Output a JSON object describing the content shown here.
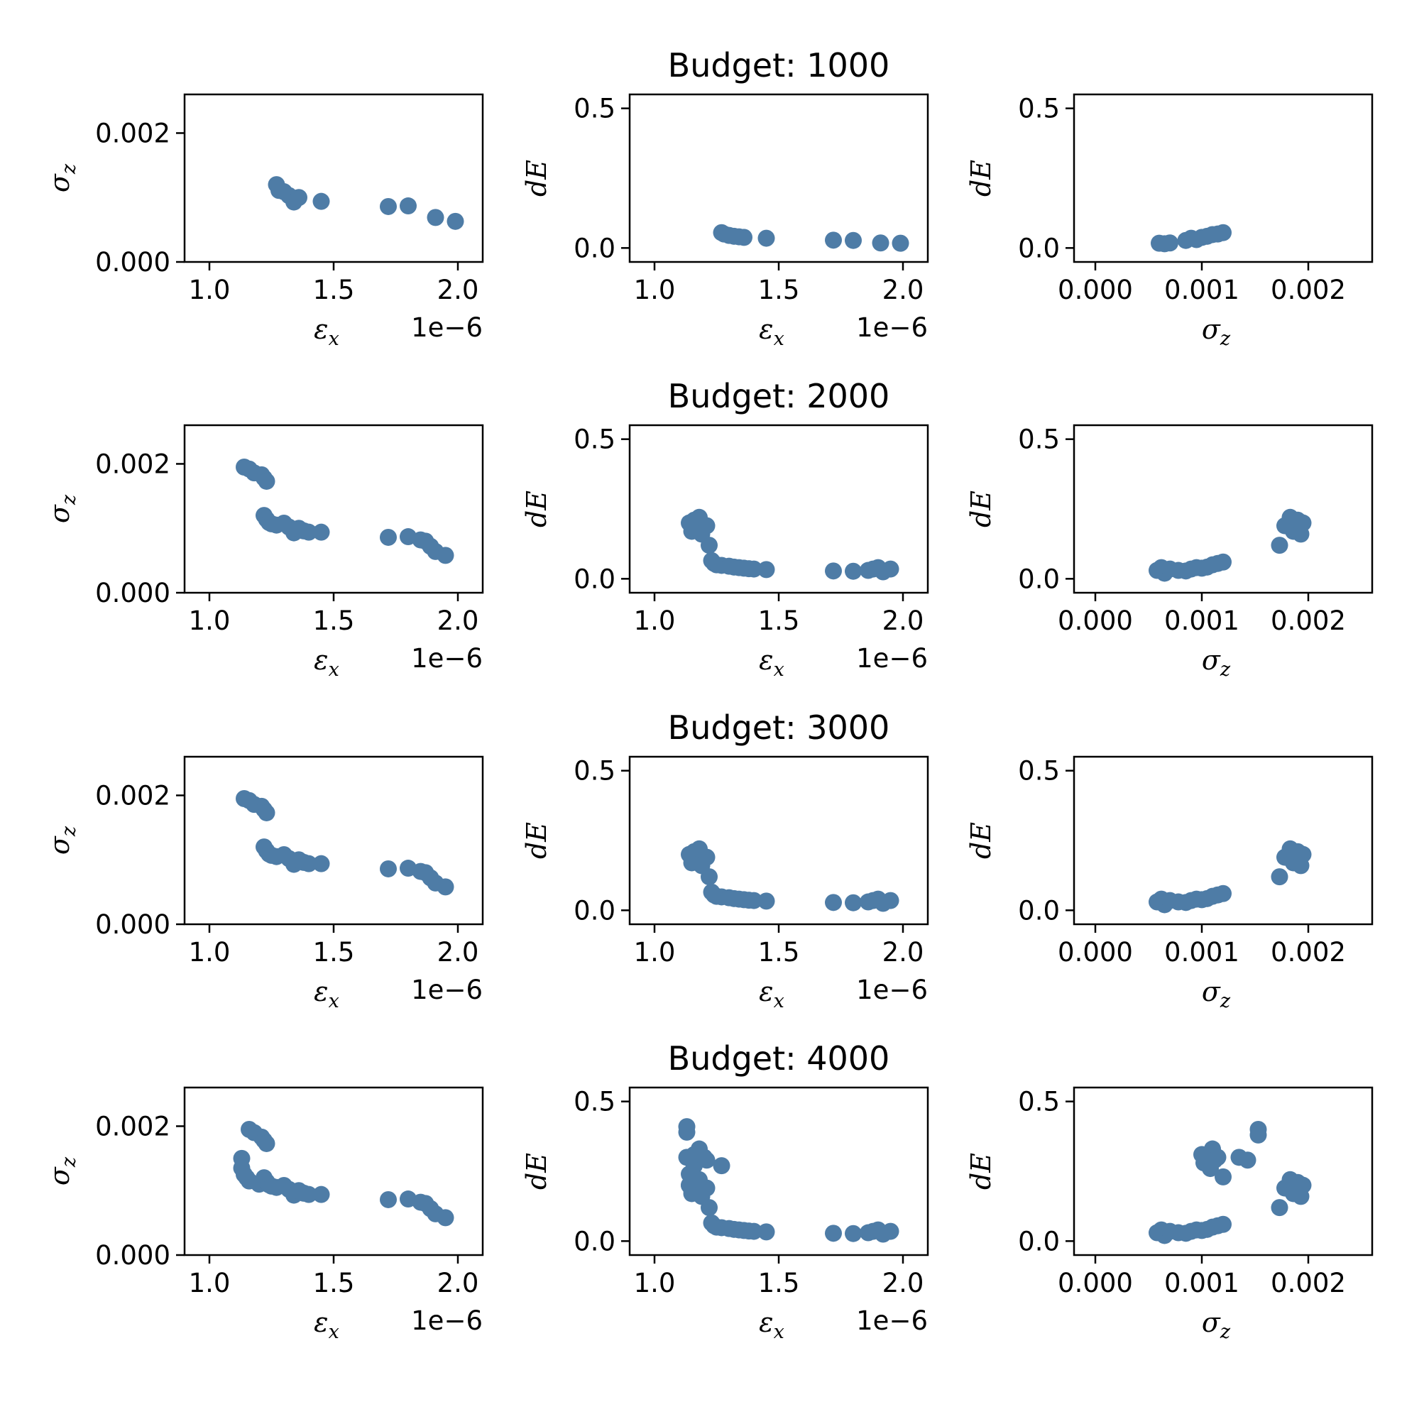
{
  "colors": {
    "marker": "#4e7ca6"
  },
  "row_titles": [
    "Budget: 1000",
    "Budget: 2000",
    "Budget: 3000",
    "Budget: 4000"
  ],
  "axis_labels": {
    "eps_x": "εx",
    "sigma_z": "σz",
    "dE": "dE",
    "offset_text": "1e−6"
  },
  "chart_data": [
    {
      "type": "scatter",
      "title": "Budget: 1000",
      "panels": [
        {
          "id": "r1c1",
          "xlabel": "εx",
          "ylabel": "σz",
          "x_offset": "1e−6",
          "xlim": [
            0.9,
            2.1
          ],
          "ylim": [
            0,
            0.0026
          ],
          "xticks": [
            "1.0",
            "1.5",
            "2.0"
          ],
          "xtick_values": [
            1.0,
            1.5,
            2.0
          ],
          "yticks": [
            "0.000",
            "0.002"
          ],
          "ytick_values": [
            0,
            0.002
          ],
          "x": [
            1.27,
            1.28,
            1.3,
            1.32,
            1.34,
            1.36,
            1.45,
            1.72,
            1.8,
            1.91,
            1.99
          ],
          "y": [
            0.0012,
            0.00111,
            0.00109,
            0.00103,
            0.00093,
            0.001,
            0.00094,
            0.00086,
            0.00087,
            0.00069,
            0.00063
          ]
        },
        {
          "id": "r1c2",
          "xlabel": "εx",
          "ylabel": "dE",
          "x_offset": "1e−6",
          "xlim": [
            0.9,
            2.1
          ],
          "ylim": [
            -0.05,
            0.55
          ],
          "xticks": [
            "1.0",
            "1.5",
            "2.0"
          ],
          "xtick_values": [
            1.0,
            1.5,
            2.0
          ],
          "yticks": [
            "0.0",
            "0.5"
          ],
          "ytick_values": [
            0,
            0.5
          ],
          "x": [
            1.27,
            1.28,
            1.3,
            1.32,
            1.34,
            1.36,
            1.45,
            1.72,
            1.8,
            1.91,
            1.99
          ],
          "y": [
            0.055,
            0.05,
            0.045,
            0.042,
            0.04,
            0.038,
            0.035,
            0.028,
            0.027,
            0.018,
            0.017
          ]
        },
        {
          "id": "r1c3",
          "xlabel": "σz",
          "ylabel": "dE",
          "xlim": [
            -0.0002,
            0.0026
          ],
          "ylim": [
            -0.05,
            0.55
          ],
          "xticks": [
            "0.000",
            "0.001",
            "0.002"
          ],
          "xtick_values": [
            0,
            0.001,
            0.002
          ],
          "yticks": [
            "0.0",
            "0.5"
          ],
          "ytick_values": [
            0,
            0.5
          ],
          "x": [
            0.0006,
            0.00065,
            0.0007,
            0.00085,
            0.0009,
            0.00095,
            0.001,
            0.00105,
            0.0011,
            0.00115,
            0.0012
          ],
          "y": [
            0.017,
            0.015,
            0.018,
            0.027,
            0.035,
            0.03,
            0.038,
            0.042,
            0.048,
            0.05,
            0.055
          ]
        }
      ]
    },
    {
      "type": "scatter",
      "title": "Budget: 2000",
      "panels": [
        {
          "id": "r2c1",
          "xlabel": "εx",
          "ylabel": "σz",
          "x_offset": "1e−6",
          "xlim": [
            0.9,
            2.1
          ],
          "ylim": [
            0,
            0.0026
          ],
          "xticks": [
            "1.0",
            "1.5",
            "2.0"
          ],
          "xtick_values": [
            1.0,
            1.5,
            2.0
          ],
          "yticks": [
            "0.000",
            "0.002"
          ],
          "ytick_values": [
            0,
            0.002
          ],
          "x": [
            1.14,
            1.16,
            1.18,
            1.21,
            1.22,
            1.23,
            1.22,
            1.23,
            1.24,
            1.25,
            1.27,
            1.3,
            1.32,
            1.34,
            1.36,
            1.38,
            1.4,
            1.45,
            1.72,
            1.8,
            1.85,
            1.87,
            1.89,
            1.91,
            1.95
          ],
          "y": [
            0.00195,
            0.00192,
            0.00186,
            0.00183,
            0.00178,
            0.00173,
            0.0012,
            0.00114,
            0.00109,
            0.00107,
            0.00105,
            0.00108,
            0.00102,
            0.00093,
            0.001,
            0.00096,
            0.00094,
            0.00094,
            0.00086,
            0.00087,
            0.00082,
            0.0008,
            0.00072,
            0.00064,
            0.00058
          ]
        },
        {
          "id": "r2c2",
          "xlabel": "εx",
          "ylabel": "dE",
          "x_offset": "1e−6",
          "xlim": [
            0.9,
            2.1
          ],
          "ylim": [
            -0.05,
            0.55
          ],
          "xticks": [
            "1.0",
            "1.5",
            "2.0"
          ],
          "xtick_values": [
            1.0,
            1.5,
            2.0
          ],
          "yticks": [
            "0.0",
            "0.5"
          ],
          "ytick_values": [
            0,
            0.5
          ],
          "x": [
            1.14,
            1.15,
            1.16,
            1.17,
            1.18,
            1.19,
            1.21,
            1.22,
            1.23,
            1.24,
            1.25,
            1.27,
            1.3,
            1.32,
            1.34,
            1.36,
            1.38,
            1.4,
            1.45,
            1.72,
            1.8,
            1.86,
            1.88,
            1.9,
            1.92,
            1.95
          ],
          "y": [
            0.2,
            0.17,
            0.21,
            0.19,
            0.22,
            0.16,
            0.19,
            0.12,
            0.065,
            0.055,
            0.05,
            0.048,
            0.045,
            0.042,
            0.04,
            0.038,
            0.036,
            0.035,
            0.033,
            0.028,
            0.027,
            0.03,
            0.035,
            0.04,
            0.025,
            0.035
          ]
        },
        {
          "id": "r2c3",
          "xlabel": "σz",
          "ylabel": "dE",
          "xlim": [
            -0.0002,
            0.0026
          ],
          "ylim": [
            -0.05,
            0.55
          ],
          "xticks": [
            "0.000",
            "0.001",
            "0.002"
          ],
          "xtick_values": [
            0,
            0.001,
            0.002
          ],
          "yticks": [
            "0.0",
            "0.5"
          ],
          "ytick_values": [
            0,
            0.5
          ],
          "x": [
            0.00058,
            0.00062,
            0.00065,
            0.0007,
            0.00078,
            0.00085,
            0.0009,
            0.00095,
            0.001,
            0.00105,
            0.0011,
            0.00115,
            0.0012,
            0.00173,
            0.00178,
            0.00183,
            0.00186,
            0.0019,
            0.00193,
            0.00195
          ],
          "y": [
            0.03,
            0.04,
            0.02,
            0.035,
            0.03,
            0.028,
            0.035,
            0.04,
            0.038,
            0.042,
            0.05,
            0.055,
            0.06,
            0.12,
            0.19,
            0.22,
            0.17,
            0.21,
            0.16,
            0.2
          ]
        }
      ]
    },
    {
      "type": "scatter",
      "title": "Budget: 3000",
      "panels": [
        {
          "id": "r3c1",
          "xlabel": "εx",
          "ylabel": "σz",
          "x_offset": "1e−6",
          "xlim": [
            0.9,
            2.1
          ],
          "ylim": [
            0,
            0.0026
          ],
          "xticks": [
            "1.0",
            "1.5",
            "2.0"
          ],
          "xtick_values": [
            1.0,
            1.5,
            2.0
          ],
          "yticks": [
            "0.000",
            "0.002"
          ],
          "ytick_values": [
            0,
            0.002
          ],
          "x": [
            1.14,
            1.16,
            1.18,
            1.21,
            1.22,
            1.23,
            1.22,
            1.23,
            1.24,
            1.25,
            1.27,
            1.3,
            1.32,
            1.34,
            1.36,
            1.38,
            1.4,
            1.45,
            1.72,
            1.8,
            1.85,
            1.87,
            1.89,
            1.91,
            1.95
          ],
          "y": [
            0.00195,
            0.00192,
            0.00186,
            0.00183,
            0.00178,
            0.00173,
            0.0012,
            0.00114,
            0.00109,
            0.00107,
            0.00105,
            0.00108,
            0.00102,
            0.00093,
            0.001,
            0.00096,
            0.00094,
            0.00094,
            0.00086,
            0.00087,
            0.00082,
            0.0008,
            0.00072,
            0.00064,
            0.00058
          ]
        },
        {
          "id": "r3c2",
          "xlabel": "εx",
          "ylabel": "dE",
          "x_offset": "1e−6",
          "xlim": [
            0.9,
            2.1
          ],
          "ylim": [
            -0.05,
            0.55
          ],
          "xticks": [
            "1.0",
            "1.5",
            "2.0"
          ],
          "xtick_values": [
            1.0,
            1.5,
            2.0
          ],
          "yticks": [
            "0.0",
            "0.5"
          ],
          "ytick_values": [
            0,
            0.5
          ],
          "x": [
            1.14,
            1.15,
            1.16,
            1.17,
            1.18,
            1.19,
            1.21,
            1.22,
            1.23,
            1.24,
            1.25,
            1.27,
            1.3,
            1.32,
            1.34,
            1.36,
            1.38,
            1.4,
            1.45,
            1.72,
            1.8,
            1.86,
            1.88,
            1.9,
            1.92,
            1.95
          ],
          "y": [
            0.2,
            0.17,
            0.21,
            0.19,
            0.22,
            0.16,
            0.19,
            0.12,
            0.065,
            0.055,
            0.05,
            0.048,
            0.045,
            0.042,
            0.04,
            0.038,
            0.036,
            0.035,
            0.033,
            0.028,
            0.027,
            0.03,
            0.035,
            0.04,
            0.025,
            0.035
          ]
        },
        {
          "id": "r3c3",
          "xlabel": "σz",
          "ylabel": "dE",
          "xlim": [
            -0.0002,
            0.0026
          ],
          "ylim": [
            -0.05,
            0.55
          ],
          "xticks": [
            "0.000",
            "0.001",
            "0.002"
          ],
          "xtick_values": [
            0,
            0.001,
            0.002
          ],
          "yticks": [
            "0.0",
            "0.5"
          ],
          "ytick_values": [
            0,
            0.5
          ],
          "x": [
            0.00058,
            0.00062,
            0.00065,
            0.0007,
            0.00078,
            0.00085,
            0.0009,
            0.00095,
            0.001,
            0.00105,
            0.0011,
            0.00115,
            0.0012,
            0.00173,
            0.00178,
            0.00183,
            0.00186,
            0.0019,
            0.00193,
            0.00195
          ],
          "y": [
            0.03,
            0.04,
            0.02,
            0.035,
            0.03,
            0.028,
            0.035,
            0.04,
            0.038,
            0.042,
            0.05,
            0.055,
            0.06,
            0.12,
            0.19,
            0.22,
            0.17,
            0.21,
            0.16,
            0.2
          ]
        }
      ]
    },
    {
      "type": "scatter",
      "title": "Budget: 4000",
      "panels": [
        {
          "id": "r4c1",
          "xlabel": "εx",
          "ylabel": "σz",
          "x_offset": "1e−6",
          "xlim": [
            0.9,
            2.1
          ],
          "ylim": [
            0,
            0.0026
          ],
          "xticks": [
            "1.0",
            "1.5",
            "2.0"
          ],
          "xtick_values": [
            1.0,
            1.5,
            2.0
          ],
          "yticks": [
            "0.000",
            "0.002"
          ],
          "ytick_values": [
            0,
            0.002
          ],
          "x": [
            1.13,
            1.13,
            1.14,
            1.15,
            1.16,
            1.16,
            1.18,
            1.2,
            1.21,
            1.22,
            1.23,
            1.22,
            1.23,
            1.24,
            1.25,
            1.27,
            1.3,
            1.32,
            1.34,
            1.36,
            1.38,
            1.4,
            1.45,
            1.72,
            1.8,
            1.85,
            1.87,
            1.89,
            1.91,
            1.95
          ],
          "y": [
            0.0015,
            0.00135,
            0.00125,
            0.0012,
            0.00115,
            0.00195,
            0.0019,
            0.0011,
            0.00183,
            0.00178,
            0.00173,
            0.0012,
            0.00114,
            0.00109,
            0.00107,
            0.00105,
            0.00108,
            0.00102,
            0.00093,
            0.001,
            0.00096,
            0.00094,
            0.00094,
            0.00086,
            0.00087,
            0.00082,
            0.0008,
            0.00072,
            0.00064,
            0.00058
          ]
        },
        {
          "id": "r4c2",
          "xlabel": "εx",
          "ylabel": "dE",
          "x_offset": "1e−6",
          "xlim": [
            0.9,
            2.1
          ],
          "ylim": [
            -0.05,
            0.55
          ],
          "xticks": [
            "1.0",
            "1.5",
            "2.0"
          ],
          "xtick_values": [
            1.0,
            1.5,
            2.0
          ],
          "yticks": [
            "0.0",
            "0.5"
          ],
          "ytick_values": [
            0,
            0.5
          ],
          "x": [
            1.13,
            1.13,
            1.13,
            1.14,
            1.14,
            1.15,
            1.15,
            1.16,
            1.16,
            1.17,
            1.18,
            1.2,
            1.21,
            1.27,
            1.14,
            1.15,
            1.16,
            1.17,
            1.18,
            1.19,
            1.21,
            1.22,
            1.23,
            1.24,
            1.25,
            1.27,
            1.3,
            1.32,
            1.34,
            1.36,
            1.38,
            1.4,
            1.45,
            1.72,
            1.8,
            1.86,
            1.88,
            1.9,
            1.92,
            1.95
          ],
          "y": [
            0.41,
            0.39,
            0.3,
            0.24,
            0.2,
            0.18,
            0.29,
            0.27,
            0.31,
            0.22,
            0.33,
            0.3,
            0.29,
            0.27,
            0.2,
            0.17,
            0.21,
            0.19,
            0.22,
            0.16,
            0.19,
            0.12,
            0.065,
            0.055,
            0.05,
            0.048,
            0.045,
            0.042,
            0.04,
            0.038,
            0.036,
            0.035,
            0.033,
            0.028,
            0.027,
            0.03,
            0.035,
            0.04,
            0.025,
            0.035
          ]
        },
        {
          "id": "r4c3",
          "xlabel": "σz",
          "ylabel": "dE",
          "xlim": [
            -0.0002,
            0.0026
          ],
          "ylim": [
            -0.05,
            0.55
          ],
          "xticks": [
            "0.000",
            "0.001",
            "0.002"
          ],
          "xtick_values": [
            0,
            0.001,
            0.002
          ],
          "yticks": [
            "0.0",
            "0.5"
          ],
          "ytick_values": [
            0,
            0.5
          ],
          "x": [
            0.00058,
            0.00062,
            0.00065,
            0.0007,
            0.00078,
            0.00085,
            0.0009,
            0.00095,
            0.001,
            0.00105,
            0.0011,
            0.00115,
            0.0012,
            0.001,
            0.00102,
            0.00105,
            0.00108,
            0.0011,
            0.00112,
            0.00115,
            0.0012,
            0.00135,
            0.00143,
            0.00153,
            0.00153,
            0.00173,
            0.00178,
            0.00183,
            0.00186,
            0.0019,
            0.00193,
            0.00195
          ],
          "y": [
            0.03,
            0.04,
            0.02,
            0.035,
            0.03,
            0.028,
            0.035,
            0.04,
            0.038,
            0.042,
            0.05,
            0.055,
            0.06,
            0.31,
            0.28,
            0.3,
            0.26,
            0.33,
            0.29,
            0.3,
            0.23,
            0.3,
            0.29,
            0.4,
            0.38,
            0.12,
            0.19,
            0.22,
            0.17,
            0.21,
            0.16,
            0.2
          ]
        }
      ]
    }
  ]
}
